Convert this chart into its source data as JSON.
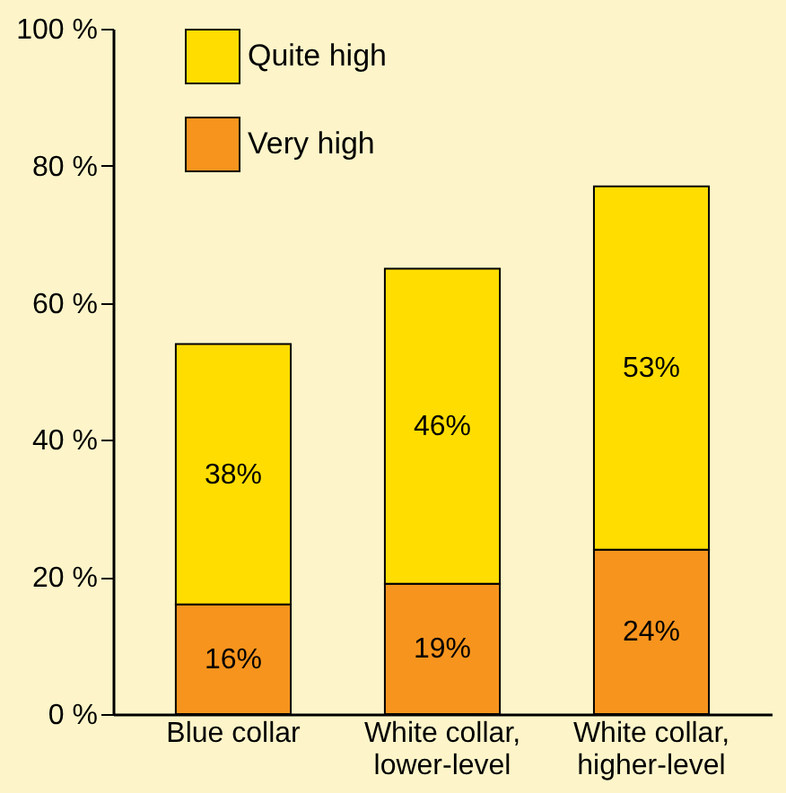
{
  "chart_data": {
    "type": "bar",
    "stacked": true,
    "categories": [
      "Blue collar",
      "White collar,\nlower-level",
      "White collar,\nhigher-level"
    ],
    "series": [
      {
        "name": "Very high",
        "color": "#f7941d",
        "values": [
          16,
          19,
          24
        ],
        "value_labels": [
          "16%",
          "19%",
          "24%"
        ]
      },
      {
        "name": "Quite high",
        "color": "#ffdd00",
        "values": [
          38,
          46,
          53
        ],
        "value_labels": [
          "38%",
          "46%",
          "53%"
        ]
      }
    ],
    "ylim": [
      0,
      100
    ],
    "yticks": [
      {
        "value": 0,
        "label": "0 %"
      },
      {
        "value": 20,
        "label": "20 %"
      },
      {
        "value": 40,
        "label": "40 %"
      },
      {
        "value": 60,
        "label": "60 %"
      },
      {
        "value": 80,
        "label": "80 %"
      },
      {
        "value": 100,
        "label": "100 %"
      }
    ],
    "grid": false,
    "legend": "top left"
  }
}
